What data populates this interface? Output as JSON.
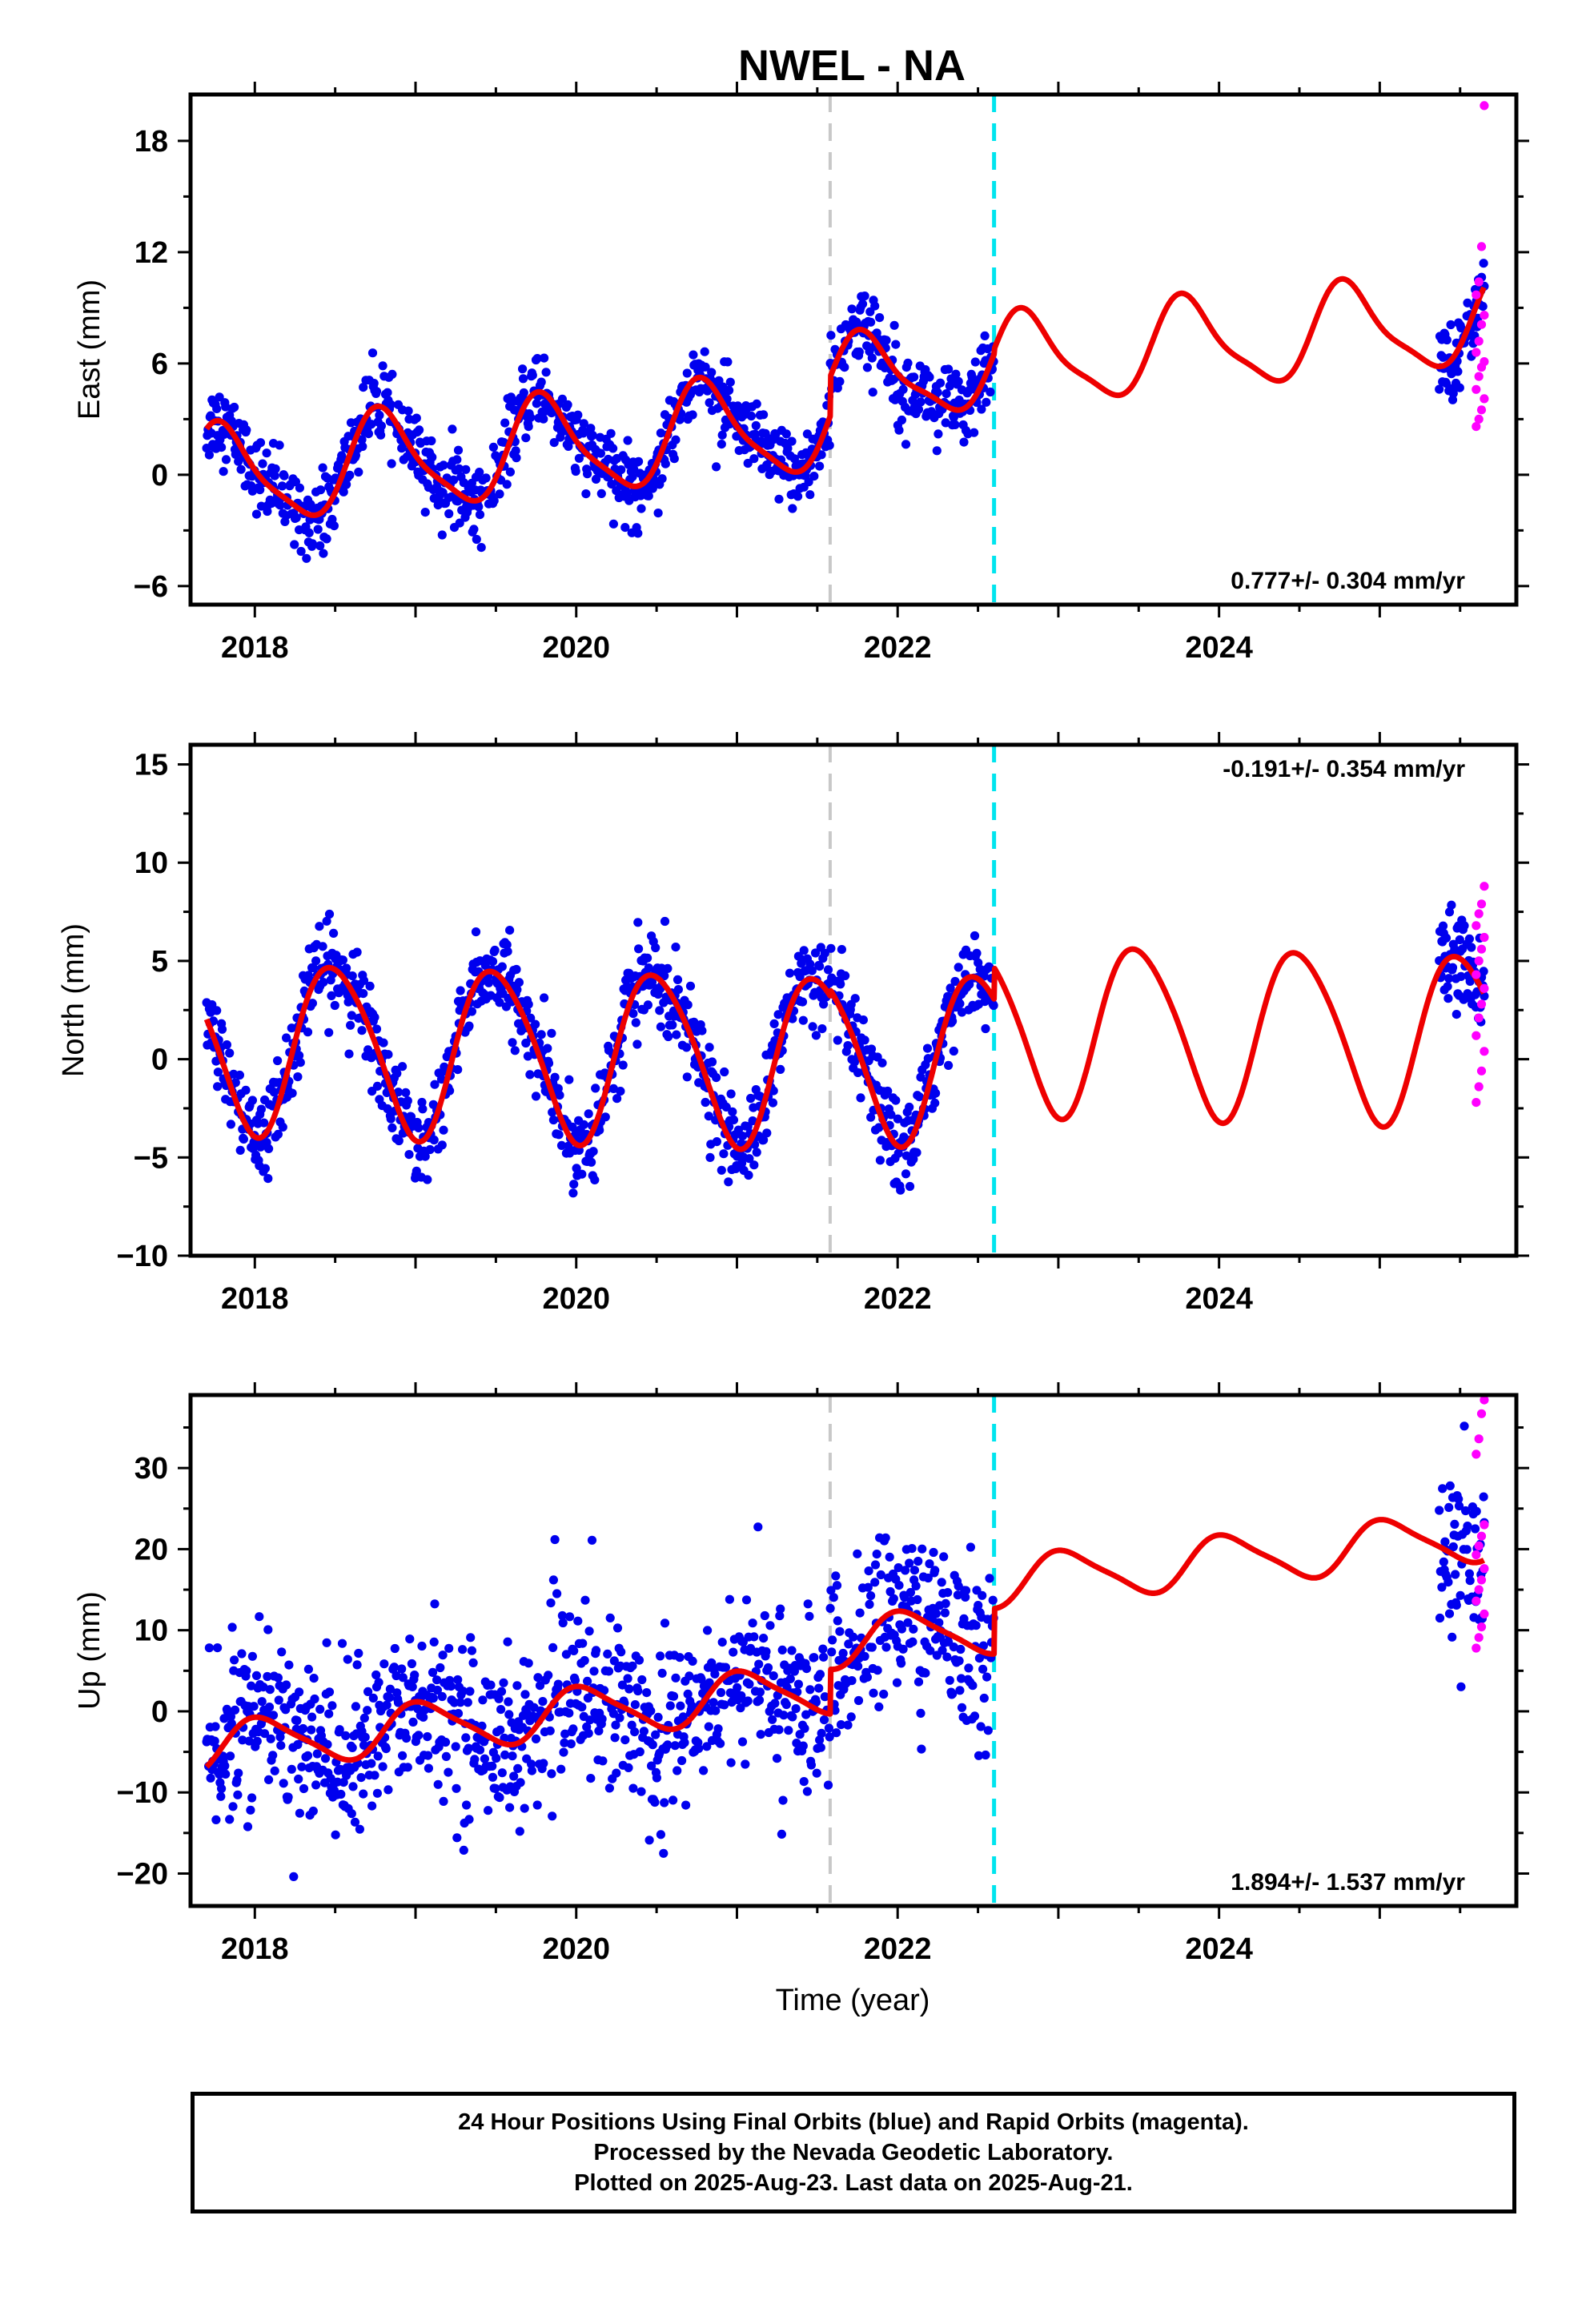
{
  "title": "NWEL - NA",
  "colors": {
    "final_orbits": "#0000ee",
    "rapid_orbits": "#ff00ff",
    "model": "#ee0000",
    "equipment_change_line": "#c8c8c8",
    "event_line": "#00e5ee"
  },
  "chart_data": [
    {
      "type": "scatter",
      "component": "East",
      "ylabel": "East (mm)",
      "xlabel": "",
      "xlim": [
        2017.6,
        2025.85
      ],
      "ylim": [
        -7,
        20.5
      ],
      "yticks": [
        -6,
        0,
        6,
        12,
        18
      ],
      "xticks": [
        2018,
        2020,
        2022,
        2024
      ],
      "rate": "0.777+/- 0.304 mm/yr",
      "rate_position": "bottom-right",
      "vertical_lines": [
        2021.58,
        2022.6
      ],
      "final_segments": [
        [
          2017.7,
          2022.6
        ],
        [
          2025.37,
          2025.65
        ]
      ],
      "rapid_range": [
        2025.55,
        2025.65
      ],
      "model": {
        "rate_mm_yr": 0.777,
        "segments": [
          {
            "start": 2017.7,
            "end": 2021.58,
            "offset": -0.2,
            "amp_annual": 2.6,
            "phase_annual": 0.55,
            "amp_semi": 0.6,
            "phase_semi": 0.1
          },
          {
            "start": 2021.58,
            "end": 2022.6,
            "offset": 2.0,
            "amp_annual": 2.2,
            "phase_annual": 0.55,
            "amp_semi": 0.6,
            "phase_semi": 0.1
          },
          {
            "start": 2022.6,
            "end": 2025.65,
            "offset": 2.2,
            "amp_annual": 2.4,
            "phase_annual": 0.55,
            "amp_semi": 0.6,
            "phase_semi": 0.1
          }
        ]
      },
      "scatter_sd": 1.0,
      "rapid_values": [
        19.9,
        12.3,
        10.4,
        9.7,
        8.6,
        8.1,
        7.2,
        6.6,
        6.1,
        5.8,
        5.3,
        4.6,
        4.1,
        3.5,
        3.0,
        2.6
      ]
    },
    {
      "type": "scatter",
      "component": "North",
      "ylabel": "North (mm)",
      "xlabel": "",
      "xlim": [
        2017.6,
        2025.85
      ],
      "ylim": [
        -10,
        16
      ],
      "yticks": [
        -10,
        -5,
        0,
        5,
        10,
        15
      ],
      "xticks": [
        2018,
        2020,
        2022,
        2024
      ],
      "rate": "-0.191+/- 0.354 mm/yr",
      "rate_position": "top-right",
      "vertical_lines": [
        2021.58,
        2022.6
      ],
      "final_segments": [
        [
          2017.7,
          2022.6
        ],
        [
          2025.37,
          2025.65
        ]
      ],
      "rapid_range": [
        2025.55,
        2025.65
      ],
      "model": {
        "rate_mm_yr": -0.191,
        "segments": [
          {
            "start": 2017.7,
            "end": 2021.58,
            "offset": 0.7,
            "amp_annual": 4.3,
            "phase_annual": 0.25,
            "amp_semi": 0.5,
            "phase_semi": 0.2
          },
          {
            "start": 2021.58,
            "end": 2022.6,
            "offset": 1.0,
            "amp_annual": 4.3,
            "phase_annual": 0.25,
            "amp_semi": 0.5,
            "phase_semi": 0.2
          },
          {
            "start": 2022.6,
            "end": 2025.65,
            "offset": 2.6,
            "amp_annual": 4.3,
            "phase_annual": 0.25,
            "amp_semi": 0.5,
            "phase_semi": 0.2
          }
        ]
      },
      "scatter_sd": 1.1,
      "rapid_values": [
        8.8,
        7.9,
        7.4,
        6.8,
        6.2,
        5.6,
        5.0,
        4.3,
        3.6,
        2.8,
        2.1,
        1.2,
        0.4,
        -0.6,
        -1.4,
        -2.2
      ]
    },
    {
      "type": "scatter",
      "component": "Up",
      "ylabel": "Up (mm)",
      "xlabel": "Time (year)",
      "xlim": [
        2017.6,
        2025.85
      ],
      "ylim": [
        -24,
        39
      ],
      "yticks": [
        -20,
        -10,
        0,
        10,
        20,
        30
      ],
      "xticks": [
        2018,
        2020,
        2022,
        2024
      ],
      "rate": "1.894+/- 1.537 mm/yr",
      "rate_position": "bottom-right",
      "vertical_lines": [
        2021.58,
        2022.6
      ],
      "final_segments": [
        [
          2017.7,
          2022.6
        ],
        [
          2025.37,
          2025.65
        ]
      ],
      "rapid_range": [
        2025.55,
        2025.65
      ],
      "model": {
        "rate_mm_yr": 1.894,
        "segments": [
          {
            "start": 2017.7,
            "end": 2021.58,
            "offset": -4.5,
            "amp_annual": 3.0,
            "phase_annual": 0.8,
            "amp_semi": 0.6,
            "phase_semi": 0.3
          },
          {
            "start": 2021.58,
            "end": 2022.6,
            "offset": 1.0,
            "amp_annual": 3.0,
            "phase_annual": 0.8,
            "amp_semi": 0.6,
            "phase_semi": 0.3
          },
          {
            "start": 2022.6,
            "end": 2025.65,
            "offset": 6.6,
            "amp_annual": 3.0,
            "phase_annual": 0.8,
            "amp_semi": 0.6,
            "phase_semi": 0.3
          }
        ]
      },
      "scatter_sd": 5.2,
      "rapid_values": [
        38.4,
        36.7,
        33.6,
        31.7,
        23.0,
        21.6,
        20.4,
        19.3,
        17.6,
        16.2,
        15.0,
        13.6,
        12.0,
        10.4,
        9.1,
        7.8
      ]
    }
  ],
  "caption": {
    "line1": "24 Hour Positions Using Final Orbits (blue) and Rapid Orbits (magenta).",
    "line2": "Processed by the Nevada Geodetic Laboratory.",
    "line3": "Plotted on 2025-Aug-23. Last data on 2025-Aug-21."
  }
}
